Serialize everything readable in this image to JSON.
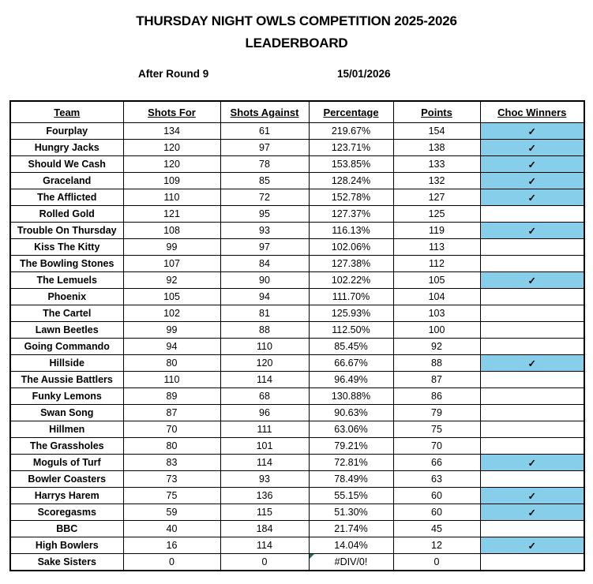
{
  "page": {
    "title_line1": "THURSDAY NIGHT OWLS COMPETITION 2025-2026",
    "title_line2": "LEADERBOARD",
    "round_label": "After Round 9",
    "date": "15/01/2026"
  },
  "colors": {
    "choc_winner_cell": "#87CEEB",
    "border": "#000000",
    "error_indicator": "#217346",
    "check_glyph_color": "#000000"
  },
  "table": {
    "columns": [
      "Team",
      "Shots For",
      "Shots Against",
      "Percentage",
      "Points",
      "Choc Winners"
    ],
    "check_glyph": "✓",
    "rows": [
      {
        "team": "Fourplay",
        "shots_for": "134",
        "shots_against": "61",
        "percentage": "219.67%",
        "points": "154",
        "choc_winner": true,
        "error": false
      },
      {
        "team": "Hungry Jacks",
        "shots_for": "120",
        "shots_against": "97",
        "percentage": "123.71%",
        "points": "138",
        "choc_winner": true,
        "error": false
      },
      {
        "team": "Should We Cash",
        "shots_for": "120",
        "shots_against": "78",
        "percentage": "153.85%",
        "points": "133",
        "choc_winner": true,
        "error": false
      },
      {
        "team": "Graceland",
        "shots_for": "109",
        "shots_against": "85",
        "percentage": "128.24%",
        "points": "132",
        "choc_winner": true,
        "error": false
      },
      {
        "team": "The Afflicted",
        "shots_for": "110",
        "shots_against": "72",
        "percentage": "152.78%",
        "points": "127",
        "choc_winner": true,
        "error": false
      },
      {
        "team": "Rolled Gold",
        "shots_for": "121",
        "shots_against": "95",
        "percentage": "127.37%",
        "points": "125",
        "choc_winner": false,
        "error": false
      },
      {
        "team": "Trouble On Thursday",
        "shots_for": "108",
        "shots_against": "93",
        "percentage": "116.13%",
        "points": "119",
        "choc_winner": true,
        "error": false
      },
      {
        "team": "Kiss The Kitty",
        "shots_for": "99",
        "shots_against": "97",
        "percentage": "102.06%",
        "points": "113",
        "choc_winner": false,
        "error": false
      },
      {
        "team": "The Bowling Stones",
        "shots_for": "107",
        "shots_against": "84",
        "percentage": "127.38%",
        "points": "112",
        "choc_winner": false,
        "error": false
      },
      {
        "team": "The Lemuels",
        "shots_for": "92",
        "shots_against": "90",
        "percentage": "102.22%",
        "points": "105",
        "choc_winner": true,
        "error": false
      },
      {
        "team": "Phoenix",
        "shots_for": "105",
        "shots_against": "94",
        "percentage": "111.70%",
        "points": "104",
        "choc_winner": false,
        "error": false
      },
      {
        "team": "The Cartel",
        "shots_for": "102",
        "shots_against": "81",
        "percentage": "125.93%",
        "points": "103",
        "choc_winner": false,
        "error": false
      },
      {
        "team": "Lawn Beetles",
        "shots_for": "99",
        "shots_against": "88",
        "percentage": "112.50%",
        "points": "100",
        "choc_winner": false,
        "error": false
      },
      {
        "team": "Going Commando",
        "shots_for": "94",
        "shots_against": "110",
        "percentage": "85.45%",
        "points": "92",
        "choc_winner": false,
        "error": false
      },
      {
        "team": "Hillside",
        "shots_for": "80",
        "shots_against": "120",
        "percentage": "66.67%",
        "points": "88",
        "choc_winner": true,
        "error": false
      },
      {
        "team": "The Aussie Battlers",
        "shots_for": "110",
        "shots_against": "114",
        "percentage": "96.49%",
        "points": "87",
        "choc_winner": false,
        "error": false
      },
      {
        "team": "Funky Lemons",
        "shots_for": "89",
        "shots_against": "68",
        "percentage": "130.88%",
        "points": "86",
        "choc_winner": false,
        "error": false
      },
      {
        "team": "Swan Song",
        "shots_for": "87",
        "shots_against": "96",
        "percentage": "90.63%",
        "points": "79",
        "choc_winner": false,
        "error": false
      },
      {
        "team": "Hillmen",
        "shots_for": "70",
        "shots_against": "111",
        "percentage": "63.06%",
        "points": "75",
        "choc_winner": false,
        "error": false
      },
      {
        "team": "The Grassholes",
        "shots_for": "80",
        "shots_against": "101",
        "percentage": "79.21%",
        "points": "70",
        "choc_winner": false,
        "error": false
      },
      {
        "team": "Moguls of Turf",
        "shots_for": "83",
        "shots_against": "114",
        "percentage": "72.81%",
        "points": "66",
        "choc_winner": true,
        "error": false
      },
      {
        "team": "Bowler Coasters",
        "shots_for": "73",
        "shots_against": "93",
        "percentage": "78.49%",
        "points": "63",
        "choc_winner": false,
        "error": false
      },
      {
        "team": "Harrys Harem",
        "shots_for": "75",
        "shots_against": "136",
        "percentage": "55.15%",
        "points": "60",
        "choc_winner": true,
        "error": false
      },
      {
        "team": "Scoregasms",
        "shots_for": "59",
        "shots_against": "115",
        "percentage": "51.30%",
        "points": "60",
        "choc_winner": true,
        "error": false
      },
      {
        "team": "BBC",
        "shots_for": "40",
        "shots_against": "184",
        "percentage": "21.74%",
        "points": "45",
        "choc_winner": false,
        "error": false
      },
      {
        "team": "High Bowlers",
        "shots_for": "16",
        "shots_against": "114",
        "percentage": "14.04%",
        "points": "12",
        "choc_winner": true,
        "error": false
      },
      {
        "team": "Sake Sisters",
        "shots_for": "0",
        "shots_against": "0",
        "percentage": "#DIV/0!",
        "points": "0",
        "choc_winner": false,
        "error": true
      }
    ]
  }
}
